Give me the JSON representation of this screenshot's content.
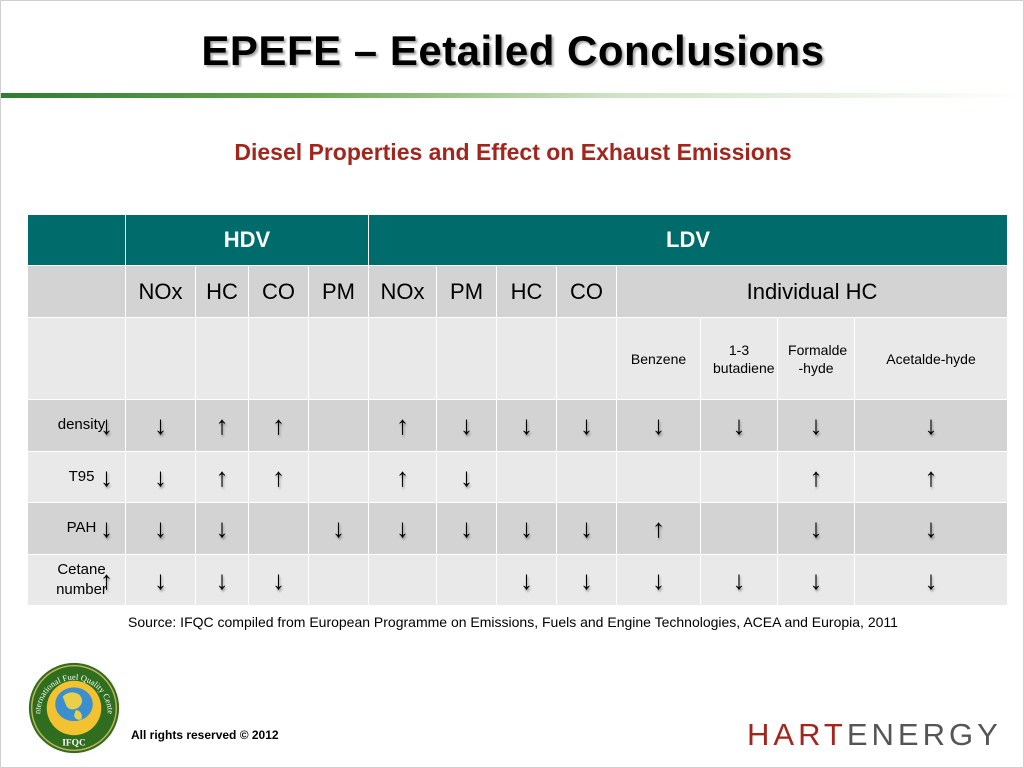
{
  "title": "EPEFE – Eetailed Conclusions",
  "subtitle": "Diesel Properties and Effect on Exhaust Emissions",
  "table": {
    "groups": {
      "hdv": "HDV",
      "ldv": "LDV"
    },
    "subheaders": {
      "hdv": [
        "NOx",
        "HC",
        "CO",
        "PM"
      ],
      "ldv": [
        "NOx",
        "PM",
        "HC",
        "CO"
      ],
      "individual_hc": "Individual HC"
    },
    "hc_components": [
      "Benzene",
      "1-3 butadiene",
      "Formalde -hyde",
      "Acetalde-hyde"
    ],
    "rows": [
      {
        "label": "density",
        "property_arrow": "↓",
        "cells": [
          "↓",
          "↑",
          "↑",
          "",
          "↑",
          "↓",
          "↓",
          "↓",
          "↓",
          "↓",
          "↓",
          "↓"
        ]
      },
      {
        "label": "T95",
        "property_arrow": "↓",
        "cells": [
          "↓",
          "↑",
          "↑",
          "",
          "↑",
          "↓",
          "",
          "",
          "",
          "",
          "↑",
          "↑"
        ]
      },
      {
        "label": "PAH",
        "property_arrow": "↓",
        "cells": [
          "↓",
          "↓",
          "",
          "↓",
          "↓",
          "↓",
          "↓",
          "↓",
          "↑",
          "",
          "↓",
          "↓"
        ]
      },
      {
        "label": "Cetane number",
        "property_arrow": "↑",
        "cells": [
          "↓",
          "↓",
          "↓",
          "",
          "",
          "",
          "↓",
          "↓",
          "↓",
          "↓",
          "↓",
          "↓"
        ]
      }
    ]
  },
  "source": "Source: IFQC compiled from European Programme on Emissions, Fuels and Engine Technologies, ACEA and Europia, 2011",
  "footer": {
    "rights": "All rights reserved © 2012",
    "brand_part1": "HART",
    "brand_part2": "ENERGY",
    "logo_ring_text": "International Fuel Quality Center",
    "logo_abbrev": "IFQC"
  },
  "colors": {
    "header_teal": "#006b6b",
    "subtitle_red": "#a2261e",
    "row_gray": "#d3d3d3",
    "row_light": "#e9e9e9",
    "logo_green": "#2e6e1e"
  }
}
